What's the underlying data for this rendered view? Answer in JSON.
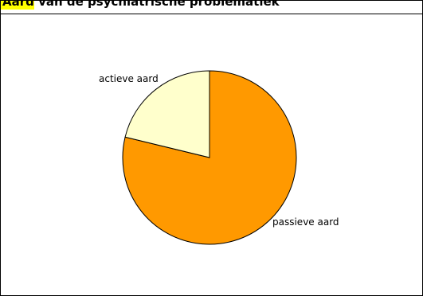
{
  "title": {
    "highlight_text": "Aard",
    "text": " van de psychiatrische problematiek"
  },
  "colors": {
    "title_highlight": "#ffff00",
    "slice_passive": "#ff9900",
    "slice_active": "#ffffcc",
    "outline": "#000000"
  },
  "chart_data": {
    "type": "pie",
    "categories": [
      "passieve aard",
      "actieve aard"
    ],
    "values": [
      78.8,
      21.2
    ],
    "labels_position": "outside",
    "legend": "none"
  }
}
